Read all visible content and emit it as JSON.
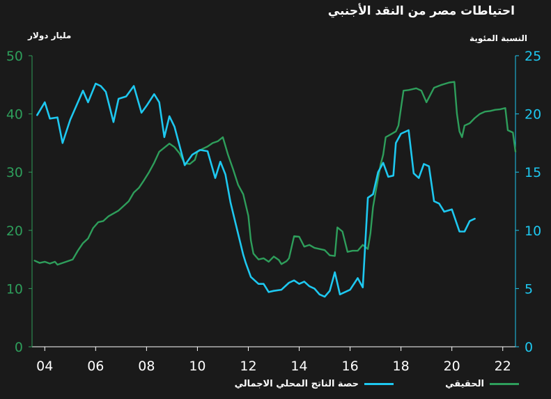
{
  "chart_data": {
    "type": "line",
    "title": "احتياطات مصر من النقد الأجنبي",
    "left_axis": {
      "label": "مليار دولار",
      "ticks": [
        0,
        10,
        20,
        30,
        40,
        50
      ],
      "range": [
        0,
        50
      ],
      "color": "#2e9e5b"
    },
    "right_axis": {
      "label": "النسبة المئوية",
      "ticks": [
        0,
        5,
        10,
        15,
        20,
        25
      ],
      "range": [
        0,
        25
      ],
      "color": "#1ec8f0"
    },
    "x_axis": {
      "ticks": [
        "04",
        "06",
        "08",
        "10",
        "12",
        "14",
        "16",
        "18",
        "20",
        "22"
      ],
      "tick_years": [
        2004,
        2006,
        2008,
        2010,
        2012,
        2014,
        2016,
        2018,
        2020,
        2022
      ],
      "range": [
        2003.5,
        2022.5
      ]
    },
    "grid": false,
    "legend_position": "bottom-right",
    "series": [
      {
        "name": "الحقيقي",
        "axis": "left",
        "color": "#2e9e5b",
        "points": [
          [
            2003.6,
            14.8
          ],
          [
            2003.8,
            14.4
          ],
          [
            2004.0,
            14.6
          ],
          [
            2004.2,
            14.3
          ],
          [
            2004.4,
            14.6
          ],
          [
            2004.5,
            14.1
          ],
          [
            2004.7,
            14.4
          ],
          [
            2004.9,
            14.7
          ],
          [
            2005.1,
            15.0
          ],
          [
            2005.3,
            16.5
          ],
          [
            2005.5,
            17.8
          ],
          [
            2005.7,
            18.6
          ],
          [
            2005.9,
            20.4
          ],
          [
            2006.1,
            21.4
          ],
          [
            2006.3,
            21.6
          ],
          [
            2006.5,
            22.4
          ],
          [
            2006.7,
            22.9
          ],
          [
            2006.9,
            23.4
          ],
          [
            2007.1,
            24.2
          ],
          [
            2007.3,
            25.0
          ],
          [
            2007.5,
            26.5
          ],
          [
            2007.7,
            27.3
          ],
          [
            2007.9,
            28.6
          ],
          [
            2008.1,
            30.0
          ],
          [
            2008.3,
            31.6
          ],
          [
            2008.5,
            33.5
          ],
          [
            2008.7,
            34.2
          ],
          [
            2008.9,
            34.9
          ],
          [
            2009.1,
            34.3
          ],
          [
            2009.3,
            33.2
          ],
          [
            2009.5,
            31.5
          ],
          [
            2009.7,
            31.4
          ],
          [
            2009.9,
            32.1
          ],
          [
            2010.0,
            33.5
          ],
          [
            2010.2,
            34.0
          ],
          [
            2010.4,
            34.4
          ],
          [
            2010.6,
            35.0
          ],
          [
            2010.8,
            35.3
          ],
          [
            2011.0,
            36.0
          ],
          [
            2011.2,
            33.0
          ],
          [
            2011.4,
            30.5
          ],
          [
            2011.6,
            27.8
          ],
          [
            2011.8,
            26.2
          ],
          [
            2012.0,
            22.5
          ],
          [
            2012.1,
            18.3
          ],
          [
            2012.2,
            16.0
          ],
          [
            2012.4,
            15.0
          ],
          [
            2012.6,
            15.2
          ],
          [
            2012.8,
            14.6
          ],
          [
            2013.0,
            15.5
          ],
          [
            2013.2,
            14.9
          ],
          [
            2013.3,
            14.2
          ],
          [
            2013.5,
            14.7
          ],
          [
            2013.6,
            15.2
          ],
          [
            2013.8,
            19.0
          ],
          [
            2014.0,
            18.9
          ],
          [
            2014.2,
            17.2
          ],
          [
            2014.4,
            17.5
          ],
          [
            2014.6,
            17.0
          ],
          [
            2014.8,
            16.8
          ],
          [
            2015.0,
            16.6
          ],
          [
            2015.2,
            15.7
          ],
          [
            2015.4,
            15.6
          ],
          [
            2015.5,
            20.5
          ],
          [
            2015.7,
            19.8
          ],
          [
            2015.9,
            16.3
          ],
          [
            2016.1,
            16.5
          ],
          [
            2016.3,
            16.5
          ],
          [
            2016.5,
            17.5
          ],
          [
            2016.7,
            16.8
          ],
          [
            2016.8,
            19.5
          ],
          [
            2016.9,
            24.0
          ],
          [
            2017.0,
            26.5
          ],
          [
            2017.2,
            31.3
          ],
          [
            2017.3,
            33.0
          ],
          [
            2017.4,
            36.0
          ],
          [
            2017.6,
            36.5
          ],
          [
            2017.8,
            37.0
          ],
          [
            2017.9,
            38.0
          ],
          [
            2018.1,
            44.0
          ],
          [
            2018.3,
            44.1
          ],
          [
            2018.6,
            44.4
          ],
          [
            2018.8,
            44.0
          ],
          [
            2019.0,
            42.0
          ],
          [
            2019.3,
            44.5
          ],
          [
            2019.6,
            45.0
          ],
          [
            2019.9,
            45.4
          ],
          [
            2020.1,
            45.5
          ],
          [
            2020.2,
            40.0
          ],
          [
            2020.3,
            37.0
          ],
          [
            2020.4,
            36.0
          ],
          [
            2020.5,
            38.0
          ],
          [
            2020.7,
            38.4
          ],
          [
            2020.9,
            39.3
          ],
          [
            2021.1,
            40.0
          ],
          [
            2021.3,
            40.4
          ],
          [
            2021.5,
            40.5
          ],
          [
            2021.7,
            40.7
          ],
          [
            2021.9,
            40.8
          ],
          [
            2022.1,
            41.0
          ],
          [
            2022.2,
            37.2
          ],
          [
            2022.4,
            36.8
          ],
          [
            2022.5,
            33.5
          ]
        ]
      },
      {
        "name": "حصة الناتج المحلي الاجمالي",
        "axis": "right",
        "color": "#1ec8f0",
        "points": [
          [
            2003.7,
            19.9
          ],
          [
            2004.0,
            21.0
          ],
          [
            2004.2,
            19.6
          ],
          [
            2004.5,
            19.7
          ],
          [
            2004.7,
            17.5
          ],
          [
            2005.0,
            19.5
          ],
          [
            2005.5,
            22.0
          ],
          [
            2005.7,
            21.0
          ],
          [
            2006.0,
            22.6
          ],
          [
            2006.2,
            22.4
          ],
          [
            2006.4,
            21.9
          ],
          [
            2006.7,
            19.3
          ],
          [
            2006.9,
            21.3
          ],
          [
            2007.2,
            21.5
          ],
          [
            2007.5,
            22.4
          ],
          [
            2007.8,
            20.1
          ],
          [
            2008.0,
            20.7
          ],
          [
            2008.3,
            21.7
          ],
          [
            2008.5,
            21.0
          ],
          [
            2008.7,
            18.0
          ],
          [
            2008.9,
            19.8
          ],
          [
            2009.1,
            18.9
          ],
          [
            2009.5,
            15.6
          ],
          [
            2009.8,
            16.5
          ],
          [
            2010.1,
            16.9
          ],
          [
            2010.4,
            16.8
          ],
          [
            2010.7,
            14.5
          ],
          [
            2010.9,
            15.9
          ],
          [
            2011.1,
            14.8
          ],
          [
            2011.3,
            12.4
          ],
          [
            2011.5,
            10.6
          ],
          [
            2011.8,
            7.9
          ],
          [
            2011.9,
            7.2
          ],
          [
            2012.1,
            6.0
          ],
          [
            2012.4,
            5.4
          ],
          [
            2012.6,
            5.4
          ],
          [
            2012.8,
            4.7
          ],
          [
            2013.0,
            4.8
          ],
          [
            2013.3,
            4.9
          ],
          [
            2013.6,
            5.5
          ],
          [
            2013.8,
            5.7
          ],
          [
            2014.0,
            5.4
          ],
          [
            2014.2,
            5.6
          ],
          [
            2014.4,
            5.2
          ],
          [
            2014.6,
            5.0
          ],
          [
            2014.8,
            4.5
          ],
          [
            2015.0,
            4.3
          ],
          [
            2015.2,
            4.8
          ],
          [
            2015.4,
            6.4
          ],
          [
            2015.6,
            4.5
          ],
          [
            2015.8,
            4.7
          ],
          [
            2016.0,
            4.9
          ],
          [
            2016.3,
            5.9
          ],
          [
            2016.5,
            5.1
          ],
          [
            2016.7,
            12.8
          ],
          [
            2016.9,
            13.1
          ],
          [
            2017.1,
            15.0
          ],
          [
            2017.3,
            15.8
          ],
          [
            2017.5,
            14.6
          ],
          [
            2017.7,
            14.7
          ],
          [
            2017.8,
            17.5
          ],
          [
            2018.0,
            18.3
          ],
          [
            2018.3,
            18.6
          ],
          [
            2018.5,
            14.9
          ],
          [
            2018.7,
            14.5
          ],
          [
            2018.9,
            15.7
          ],
          [
            2019.1,
            15.5
          ],
          [
            2019.3,
            12.5
          ],
          [
            2019.5,
            12.3
          ],
          [
            2019.7,
            11.6
          ],
          [
            2020.0,
            11.8
          ],
          [
            2020.3,
            9.9
          ],
          [
            2020.5,
            9.9
          ],
          [
            2020.7,
            10.8
          ],
          [
            2020.9,
            11.0
          ]
        ]
      }
    ]
  },
  "legend": [
    {
      "label": "الحقيقي",
      "color": "#2e9e5b"
    },
    {
      "label": "حصة الناتج المحلي الاجمالي",
      "color": "#1ec8f0"
    }
  ]
}
